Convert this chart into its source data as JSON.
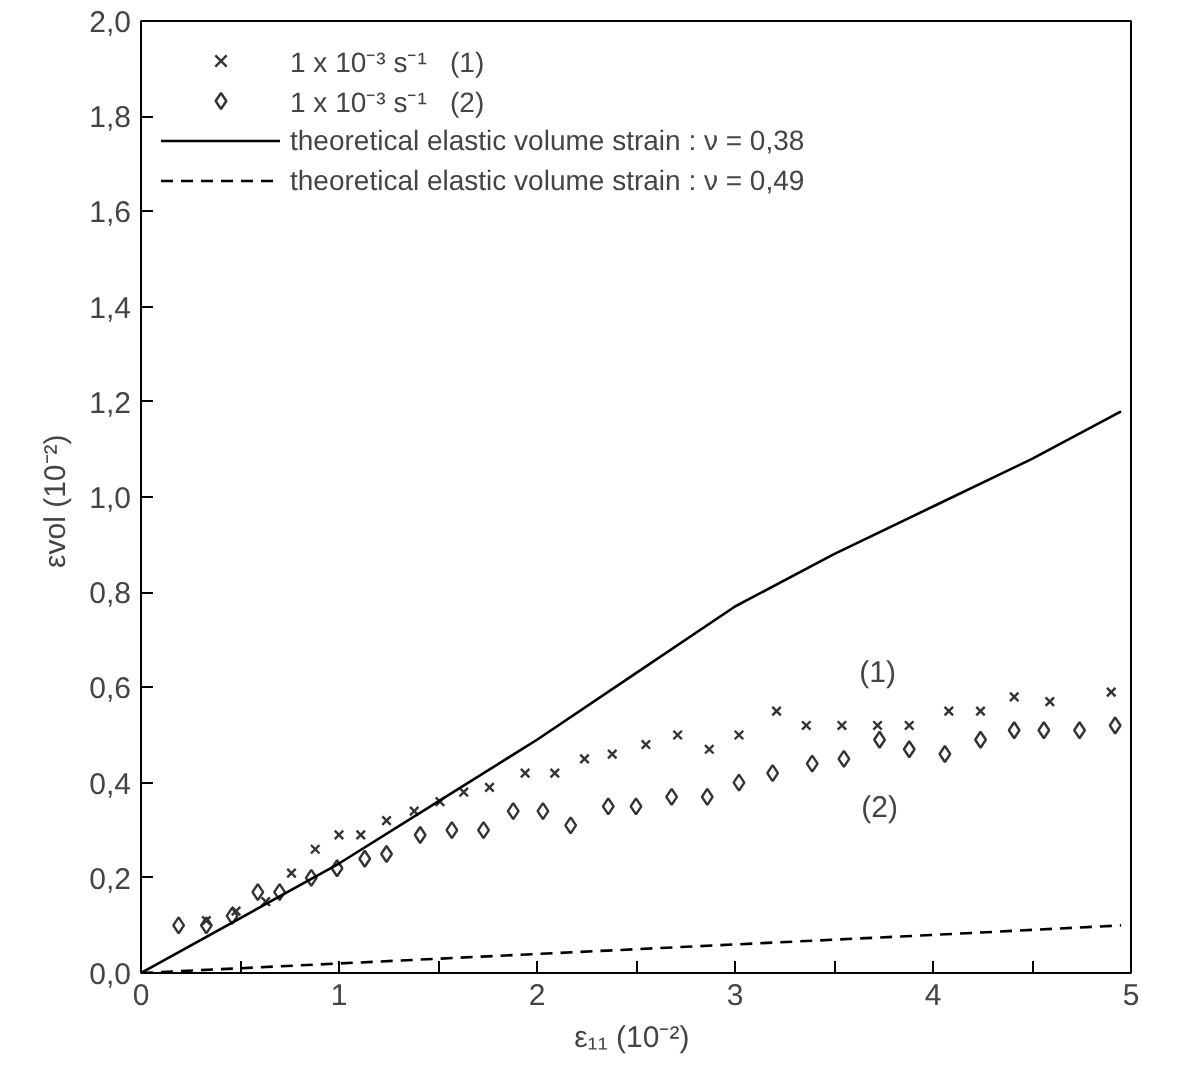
{
  "chart_data": {
    "type": "scatter",
    "xlabel": "ε₁₁  (10⁻²)",
    "ylabel": "εvol  (10⁻²)",
    "xlim": [
      0,
      5
    ],
    "ylim": [
      0,
      2
    ],
    "xticks": [
      0,
      {
        "value": 0.5,
        "label": null
      },
      1,
      {
        "value": 1.5,
        "label": null
      },
      2,
      {
        "value": 2.5,
        "label": null
      },
      3,
      {
        "value": 3.5,
        "label": null
      },
      4,
      {
        "value": 4.5,
        "label": null
      },
      5
    ],
    "yticks": [
      {
        "value": 0,
        "label": "0,0"
      },
      {
        "value": 0.2,
        "label": "0,2"
      },
      {
        "value": 0.4,
        "label": "0,4"
      },
      {
        "value": 0.6,
        "label": "0,6"
      },
      {
        "value": 0.8,
        "label": "0,8"
      },
      {
        "value": 1.0,
        "label": "1,0"
      },
      {
        "value": 1.2,
        "label": "1,2"
      },
      {
        "value": 1.4,
        "label": "1,4"
      },
      {
        "value": 1.6,
        "label": "1,6"
      },
      {
        "value": 1.8,
        "label": "1,8"
      },
      {
        "value": 2.0,
        "label": "2,0"
      }
    ],
    "grid": false,
    "legend": "top left",
    "series": [
      {
        "name": "1 x 10⁻³ s⁻¹   (1)",
        "marker": "cross",
        "color": "#333333",
        "x": [
          0.33,
          0.48,
          0.63,
          0.76,
          0.88,
          1.0,
          1.11,
          1.24,
          1.38,
          1.51,
          1.63,
          1.76,
          1.94,
          2.09,
          2.24,
          2.38,
          2.55,
          2.71,
          2.87,
          3.02,
          3.21,
          3.36,
          3.54,
          3.72,
          3.88,
          4.08,
          4.24,
          4.41,
          4.59,
          4.9
        ],
        "values": [
          0.11,
          0.13,
          0.15,
          0.21,
          0.26,
          0.29,
          0.29,
          0.32,
          0.34,
          0.36,
          0.38,
          0.39,
          0.42,
          0.42,
          0.45,
          0.46,
          0.48,
          0.5,
          0.47,
          0.5,
          0.55,
          0.52,
          0.52,
          0.52,
          0.52,
          0.55,
          0.55,
          0.58,
          0.57,
          0.59
        ]
      },
      {
        "name": "1 x 10⁻³ s⁻¹   (2)",
        "marker": "diamond",
        "color": "#333333",
        "x": [
          0.19,
          0.33,
          0.46,
          0.59,
          0.7,
          0.86,
          0.99,
          1.13,
          1.24,
          1.41,
          1.57,
          1.73,
          1.88,
          2.03,
          2.17,
          2.36,
          2.5,
          2.68,
          2.86,
          3.02,
          3.19,
          3.39,
          3.55,
          3.73,
          3.88,
          4.06,
          4.24,
          4.41,
          4.56,
          4.74,
          4.92
        ],
        "values": [
          0.1,
          0.1,
          0.12,
          0.17,
          0.17,
          0.2,
          0.22,
          0.24,
          0.25,
          0.29,
          0.3,
          0.3,
          0.34,
          0.34,
          0.31,
          0.35,
          0.35,
          0.37,
          0.37,
          0.4,
          0.42,
          0.44,
          0.45,
          0.49,
          0.47,
          0.46,
          0.49,
          0.51,
          0.51,
          0.51,
          0.52
        ]
      },
      {
        "name": "theoretical elastic volume strain : ν = 0,38",
        "type": "line",
        "line_style": "solid",
        "color": "#000000",
        "x": [
          0,
          1,
          1.5,
          2,
          2.5,
          3,
          3.5,
          4,
          4.5,
          4.95
        ],
        "values": [
          0,
          0.23,
          0.36,
          0.49,
          0.63,
          0.77,
          0.88,
          0.98,
          1.08,
          1.18
        ]
      },
      {
        "name": "theoretical elastic volume strain : ν = 0,49",
        "type": "line",
        "line_style": "dashed",
        "color": "#000000",
        "x": [
          0,
          1,
          2,
          3,
          4,
          4.95
        ],
        "values": [
          0,
          0.02,
          0.04,
          0.06,
          0.08,
          0.1
        ]
      }
    ],
    "annotations": [
      {
        "text": "(1)",
        "x": 3.72,
        "y": 0.52
      },
      {
        "text": "(2)",
        "x": 3.73,
        "y": 0.49
      }
    ]
  }
}
